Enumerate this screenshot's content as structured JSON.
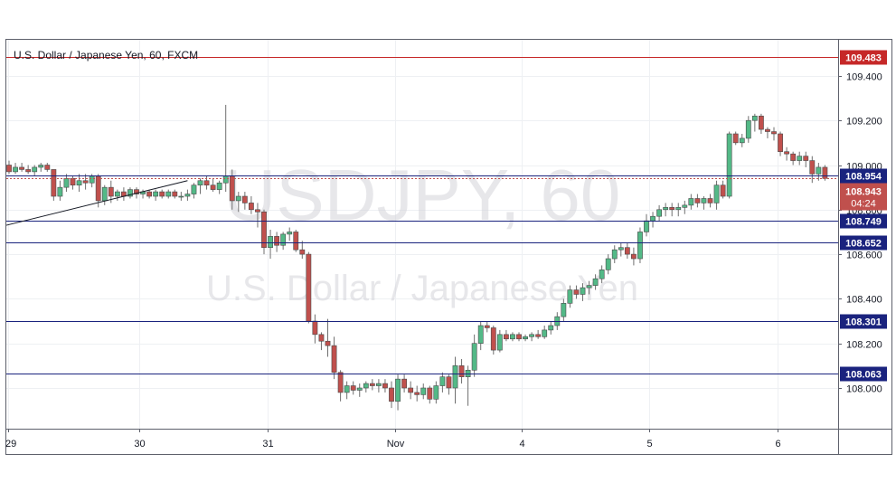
{
  "chart_data": {
    "type": "candlestick",
    "title": "U.S. Dollar / Japanese Yen, 60, FXCM",
    "watermark_symbol": "USDJPY, 60",
    "watermark_name": "U.S. Dollar / Japanese Yen",
    "x_ticks": [
      "29",
      "30",
      "31",
      "Nov",
      "4",
      "5",
      "6"
    ],
    "y_ticks": [
      "109.400",
      "109.200",
      "109.000",
      "108.800",
      "108.600",
      "108.400",
      "108.200",
      "108.000"
    ],
    "y_tick_values": [
      109.4,
      109.2,
      109.0,
      108.8,
      108.6,
      108.4,
      108.2,
      108.0
    ],
    "ylim": [
      107.8,
      109.6
    ],
    "levels": [
      {
        "label": "109.483",
        "value": 109.483,
        "color": "#c62828"
      },
      {
        "label": "108.954",
        "value": 108.954,
        "color": "#1a237e"
      },
      {
        "label": "108.749",
        "value": 108.749,
        "color": "#1a237e"
      },
      {
        "label": "108.652",
        "value": 108.652,
        "color": "#1a237e"
      },
      {
        "label": "108.301",
        "value": 108.301,
        "color": "#1a237e"
      },
      {
        "label": "108.063",
        "value": 108.063,
        "color": "#1a237e"
      }
    ],
    "price_label": {
      "label": "108.943",
      "value": 108.943,
      "color": "#c0504d"
    },
    "countdown": "04:24",
    "trendline": {
      "start": [
        0,
        108.73
      ],
      "end": [
        28,
        108.93
      ]
    },
    "up_color": "#53b987",
    "down_color": "#c0504d",
    "ohlc": [
      [
        109.0,
        109.02,
        108.96,
        108.97
      ],
      [
        108.97,
        109.01,
        108.96,
        108.99
      ],
      [
        108.99,
        109.01,
        108.97,
        108.98
      ],
      [
        108.98,
        109.0,
        108.96,
        108.97
      ],
      [
        108.97,
        109.0,
        108.95,
        108.99
      ],
      [
        108.99,
        109.01,
        108.97,
        109.0
      ],
      [
        109.0,
        109.01,
        108.97,
        108.98
      ],
      [
        108.98,
        108.98,
        108.84,
        108.86
      ],
      [
        108.86,
        108.93,
        108.84,
        108.9
      ],
      [
        108.9,
        108.96,
        108.88,
        108.94
      ],
      [
        108.94,
        108.95,
        108.89,
        108.91
      ],
      [
        108.91,
        108.96,
        108.88,
        108.93
      ],
      [
        108.93,
        108.96,
        108.89,
        108.92
      ],
      [
        108.92,
        108.96,
        108.9,
        108.95
      ],
      [
        108.95,
        108.96,
        108.81,
        108.84
      ],
      [
        108.84,
        108.91,
        108.82,
        108.9
      ],
      [
        108.9,
        108.93,
        108.83,
        108.86
      ],
      [
        108.86,
        108.89,
        108.84,
        108.88
      ],
      [
        108.88,
        108.9,
        108.84,
        108.86
      ],
      [
        108.86,
        108.9,
        108.85,
        108.89
      ],
      [
        108.89,
        108.9,
        108.85,
        108.87
      ],
      [
        108.87,
        108.89,
        108.85,
        108.88
      ],
      [
        108.88,
        108.89,
        108.85,
        108.86
      ],
      [
        108.86,
        108.89,
        108.84,
        108.88
      ],
      [
        108.88,
        108.89,
        108.85,
        108.86
      ],
      [
        108.86,
        108.89,
        108.85,
        108.88
      ],
      [
        108.88,
        108.89,
        108.85,
        108.86
      ],
      [
        108.86,
        108.88,
        108.84,
        108.86
      ],
      [
        108.86,
        108.89,
        108.84,
        108.87
      ],
      [
        108.87,
        108.92,
        108.85,
        108.91
      ],
      [
        108.91,
        108.94,
        108.87,
        108.93
      ],
      [
        108.93,
        108.95,
        108.89,
        108.91
      ],
      [
        108.91,
        108.94,
        108.88,
        108.89
      ],
      [
        108.89,
        108.93,
        108.87,
        108.92
      ],
      [
        108.92,
        109.27,
        108.88,
        108.95
      ],
      [
        108.95,
        108.98,
        108.8,
        108.84
      ],
      [
        108.84,
        108.88,
        108.79,
        108.86
      ],
      [
        108.86,
        108.88,
        108.8,
        108.83
      ],
      [
        108.83,
        108.86,
        108.78,
        108.8
      ],
      [
        108.8,
        108.83,
        108.72,
        108.79
      ],
      [
        108.79,
        108.8,
        108.6,
        108.63
      ],
      [
        108.63,
        108.71,
        108.58,
        108.68
      ],
      [
        108.68,
        108.7,
        108.61,
        108.64
      ],
      [
        108.64,
        108.7,
        108.62,
        108.69
      ],
      [
        108.69,
        108.72,
        108.66,
        108.7
      ],
      [
        108.7,
        108.71,
        108.61,
        108.62
      ],
      [
        108.62,
        108.66,
        108.58,
        108.6
      ],
      [
        108.6,
        108.61,
        108.29,
        108.3
      ],
      [
        108.3,
        108.33,
        108.2,
        108.24
      ],
      [
        108.24,
        108.25,
        108.17,
        108.21
      ],
      [
        108.21,
        108.31,
        108.14,
        108.19
      ],
      [
        108.19,
        108.23,
        108.04,
        108.07
      ],
      [
        108.07,
        108.08,
        107.94,
        107.98
      ],
      [
        107.98,
        108.03,
        107.95,
        108.01
      ],
      [
        108.01,
        108.03,
        107.97,
        107.99
      ],
      [
        107.99,
        108.02,
        107.96,
        108.0
      ],
      [
        108.0,
        108.03,
        107.98,
        108.02
      ],
      [
        108.02,
        108.04,
        107.99,
        108.01
      ],
      [
        108.01,
        108.04,
        107.98,
        108.02
      ],
      [
        108.02,
        108.04,
        107.98,
        108.0
      ],
      [
        108.0,
        108.03,
        107.91,
        107.94
      ],
      [
        107.94,
        108.06,
        107.9,
        108.04
      ],
      [
        108.04,
        108.06,
        107.98,
        108.0
      ],
      [
        108.0,
        108.03,
        107.95,
        107.98
      ],
      [
        107.98,
        108.01,
        107.94,
        107.97
      ],
      [
        107.97,
        108.02,
        107.95,
        108.0
      ],
      [
        108.0,
        108.01,
        107.93,
        107.95
      ],
      [
        107.95,
        108.03,
        107.93,
        108.01
      ],
      [
        108.01,
        108.07,
        107.98,
        108.05
      ],
      [
        108.05,
        108.06,
        107.97,
        108.0
      ],
      [
        108.0,
        108.14,
        107.93,
        108.1
      ],
      [
        108.1,
        108.13,
        108.02,
        108.05
      ],
      [
        108.05,
        108.1,
        107.92,
        108.08
      ],
      [
        108.08,
        108.24,
        108.05,
        108.2
      ],
      [
        108.2,
        108.3,
        108.17,
        108.28
      ],
      [
        108.28,
        108.3,
        108.25,
        108.27
      ],
      [
        108.27,
        108.28,
        108.15,
        108.17
      ],
      [
        108.17,
        108.26,
        108.16,
        108.24
      ],
      [
        108.24,
        108.26,
        108.21,
        108.22
      ],
      [
        108.22,
        108.25,
        108.21,
        108.24
      ],
      [
        108.24,
        108.25,
        108.21,
        108.22
      ],
      [
        108.22,
        108.24,
        108.21,
        108.23
      ],
      [
        108.23,
        108.25,
        108.21,
        108.24
      ],
      [
        108.24,
        108.26,
        108.22,
        108.23
      ],
      [
        108.23,
        108.28,
        108.22,
        108.26
      ],
      [
        108.26,
        108.3,
        108.24,
        108.28
      ],
      [
        108.28,
        108.34,
        108.26,
        108.32
      ],
      [
        108.32,
        108.4,
        108.3,
        108.38
      ],
      [
        108.38,
        108.46,
        108.36,
        108.44
      ],
      [
        108.44,
        108.46,
        108.4,
        108.42
      ],
      [
        108.42,
        108.47,
        108.39,
        108.45
      ],
      [
        108.45,
        108.48,
        108.42,
        108.46
      ],
      [
        108.46,
        108.51,
        108.44,
        108.49
      ],
      [
        108.49,
        108.55,
        108.47,
        108.53
      ],
      [
        108.53,
        108.6,
        108.51,
        108.58
      ],
      [
        108.58,
        108.64,
        108.56,
        108.62
      ],
      [
        108.62,
        108.65,
        108.59,
        108.63
      ],
      [
        108.63,
        108.65,
        108.58,
        108.6
      ],
      [
        108.6,
        108.63,
        108.55,
        108.58
      ],
      [
        108.58,
        108.72,
        108.56,
        108.7
      ],
      [
        108.7,
        108.78,
        108.68,
        108.75
      ],
      [
        108.75,
        108.79,
        108.72,
        108.77
      ],
      [
        108.77,
        108.82,
        108.75,
        108.8
      ],
      [
        108.8,
        108.83,
        108.77,
        108.81
      ],
      [
        108.81,
        108.83,
        108.77,
        108.8
      ],
      [
        108.8,
        108.83,
        108.77,
        108.81
      ],
      [
        108.81,
        108.84,
        108.78,
        108.82
      ],
      [
        108.82,
        108.87,
        108.8,
        108.85
      ],
      [
        108.85,
        108.87,
        108.81,
        108.83
      ],
      [
        108.83,
        108.86,
        108.8,
        108.85
      ],
      [
        108.85,
        108.87,
        108.81,
        108.83
      ],
      [
        108.83,
        108.93,
        108.8,
        108.91
      ],
      [
        108.91,
        108.93,
        108.85,
        108.86
      ],
      [
        108.86,
        109.15,
        108.85,
        109.14
      ],
      [
        109.14,
        109.15,
        109.09,
        109.1
      ],
      [
        109.1,
        109.14,
        109.08,
        109.12
      ],
      [
        109.12,
        109.22,
        109.1,
        109.2
      ],
      [
        109.2,
        109.23,
        109.15,
        109.22
      ],
      [
        109.22,
        109.23,
        109.14,
        109.16
      ],
      [
        109.16,
        109.17,
        109.12,
        109.15
      ],
      [
        109.15,
        109.17,
        109.11,
        109.14
      ],
      [
        109.14,
        109.15,
        109.04,
        109.06
      ],
      [
        109.06,
        109.08,
        109.02,
        109.05
      ],
      [
        109.05,
        109.06,
        109.0,
        109.02
      ],
      [
        109.02,
        109.06,
        109.0,
        109.04
      ],
      [
        109.04,
        109.06,
        108.99,
        109.02
      ],
      [
        109.02,
        109.04,
        108.92,
        108.96
      ],
      [
        108.96,
        109.01,
        108.93,
        108.99
      ],
      [
        108.99,
        109.0,
        108.93,
        108.94
      ]
    ]
  }
}
